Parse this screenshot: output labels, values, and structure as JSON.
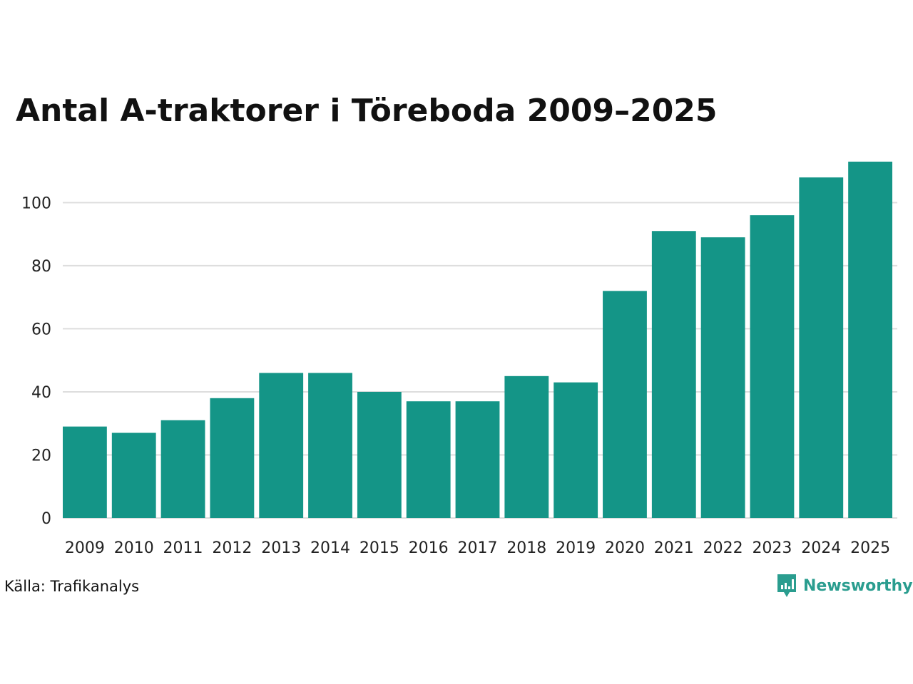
{
  "chart_data": {
    "type": "bar",
    "title": "Antal A-traktorer i Töreboda 2009–2025",
    "categories": [
      "2009",
      "2010",
      "2011",
      "2012",
      "2013",
      "2014",
      "2015",
      "2016",
      "2017",
      "2018",
      "2019",
      "2020",
      "2021",
      "2022",
      "2023",
      "2024",
      "2025"
    ],
    "values": [
      29,
      27,
      31,
      38,
      46,
      46,
      40,
      37,
      37,
      45,
      43,
      72,
      91,
      89,
      96,
      108,
      113
    ],
    "ylim": [
      0,
      115
    ],
    "yticks": [
      0,
      20,
      40,
      60,
      80,
      100
    ],
    "grid": true,
    "bar_color": "#149587"
  },
  "footer": {
    "source": "Källa: Trafikanalys",
    "brand": "Newsworthy",
    "brand_color": "#2a9d8f",
    "brand_icon": "newsworthy-chart-icon"
  }
}
